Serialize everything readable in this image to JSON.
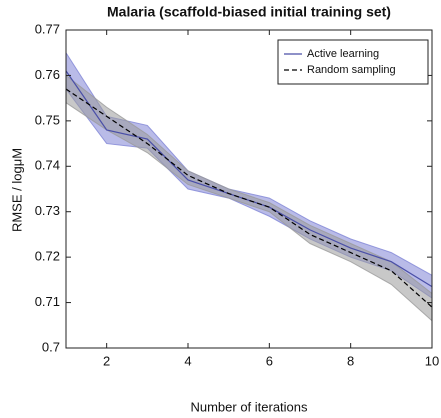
{
  "chart_data": {
    "type": "line",
    "title": "Malaria (scaffold-biased initial training set)",
    "xlabel": "Number of iterations",
    "ylabel": "RMSE / logμM",
    "x": [
      1,
      2,
      3,
      4,
      5,
      6,
      7,
      8,
      9,
      10
    ],
    "series": [
      {
        "name": "Active learning",
        "color": "#4a4fa8",
        "band_color": "#7f84d6",
        "dash": false,
        "values": [
          0.761,
          0.748,
          0.746,
          0.737,
          0.734,
          0.731,
          0.726,
          0.722,
          0.719,
          0.7135
        ],
        "upper": [
          0.765,
          0.751,
          0.749,
          0.739,
          0.735,
          0.733,
          0.728,
          0.724,
          0.721,
          0.716
        ],
        "lower": [
          0.757,
          0.745,
          0.744,
          0.735,
          0.733,
          0.729,
          0.724,
          0.72,
          0.717,
          0.711
        ]
      },
      {
        "name": "Random sampling",
        "color": "#000000",
        "band_color": "#9a9a9a",
        "dash": true,
        "values": [
          0.757,
          0.751,
          0.745,
          0.738,
          0.734,
          0.731,
          0.725,
          0.721,
          0.717,
          0.709
        ],
        "upper": [
          0.76,
          0.753,
          0.747,
          0.739,
          0.735,
          0.732,
          0.727,
          0.723,
          0.719,
          0.712
        ],
        "lower": [
          0.754,
          0.748,
          0.743,
          0.736,
          0.733,
          0.73,
          0.723,
          0.719,
          0.714,
          0.706
        ]
      }
    ],
    "xlim": [
      1,
      10
    ],
    "xticks": [
      2,
      4,
      6,
      8,
      10
    ],
    "ylim": [
      0.7,
      0.77
    ],
    "yticks": [
      0.7,
      0.71,
      0.72,
      0.73,
      0.74,
      0.75,
      0.76,
      0.77
    ],
    "legend": "northeast"
  }
}
